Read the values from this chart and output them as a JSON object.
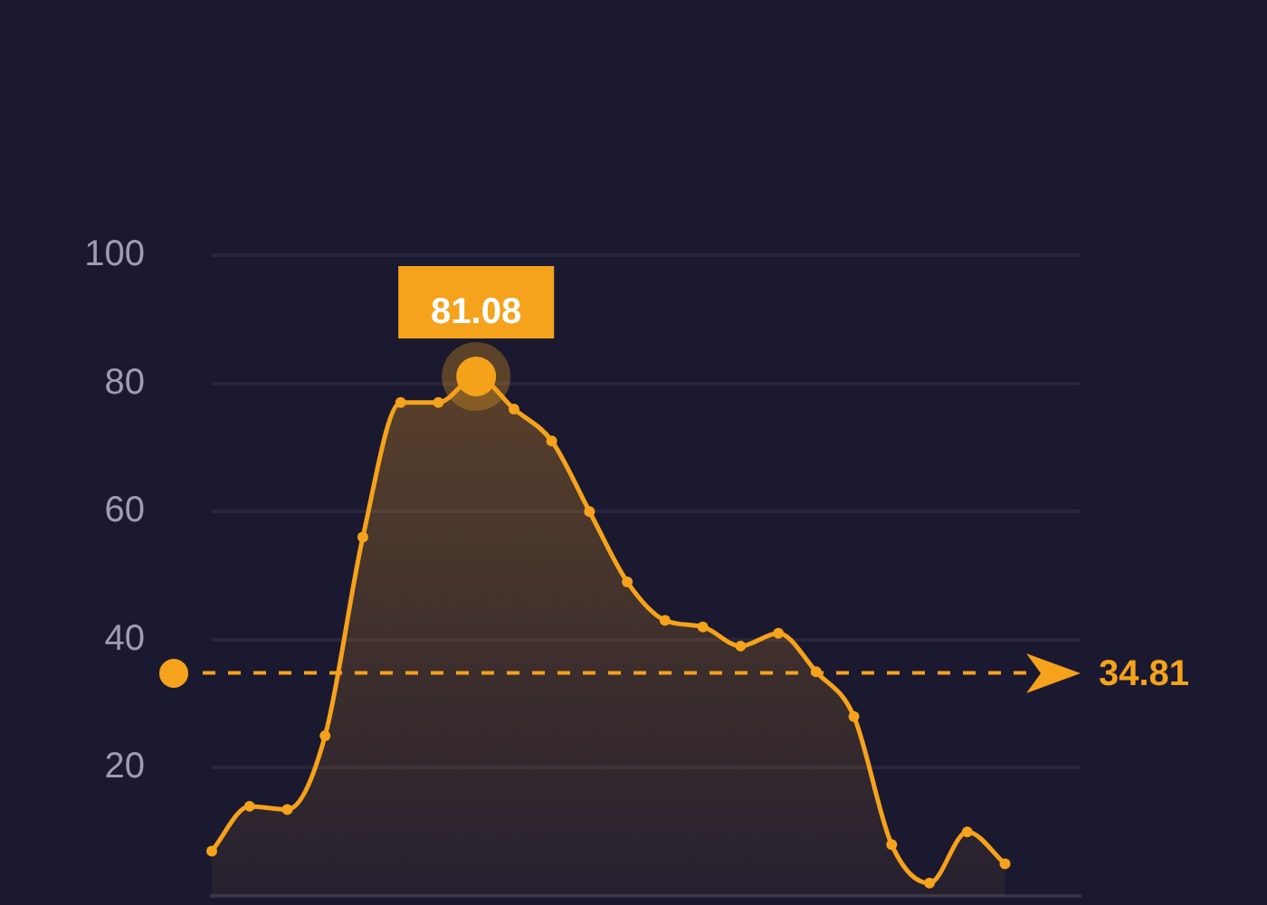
{
  "chart_data": {
    "type": "area",
    "categories": [
      null,
      null,
      null,
      null,
      null,
      null,
      null,
      null,
      null,
      null,
      null,
      null,
      null,
      null,
      null,
      null,
      null,
      null,
      null,
      null,
      null,
      null,
      null,
      null
    ],
    "values": [
      7,
      14,
      13.5,
      25,
      56,
      77,
      77,
      81.08,
      76,
      71,
      60,
      49,
      43,
      42,
      39,
      41,
      35,
      28,
      8,
      2,
      10,
      5,
      null,
      null
    ],
    "value_labels": [
      null,
      null,
      null,
      null,
      null,
      null,
      null,
      "81.08",
      null,
      null,
      null,
      null,
      null,
      null,
      null,
      null,
      null,
      null,
      null,
      null,
      null,
      null,
      null,
      null
    ],
    "color": "#f5a21c",
    "ylim": [
      0,
      100
    ],
    "yticks": [
      20,
      40,
      60,
      80,
      100
    ],
    "grid": "y",
    "marker": "circle",
    "ref_lines": [
      {
        "axis": "y",
        "value": 34.81,
        "label": "34.81",
        "color": "#f5a21c",
        "line_style": "dashed"
      }
    ]
  }
}
